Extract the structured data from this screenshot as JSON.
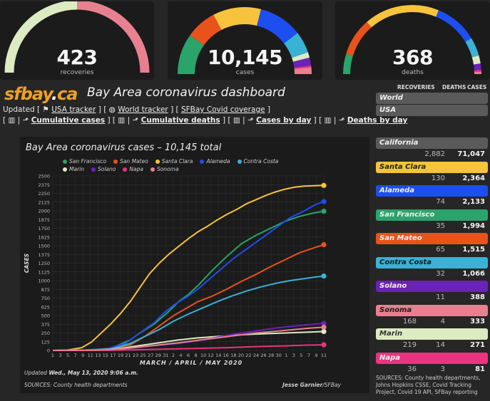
{
  "gauges": [
    {
      "value": "423",
      "label": "recoveries"
    },
    {
      "value": "10,145",
      "label": "cases"
    },
    {
      "value": "368",
      "label": "deaths"
    }
  ],
  "header": {
    "logo_main": "sfbay",
    "logo_suffix": "ca",
    "title": "Bay Area coronavirus dashboard",
    "updated_prefix": "Updated [",
    "links_row1": [
      {
        "icon": "flag-icon",
        "label": "USA tracker"
      },
      {
        "icon": "globe-icon",
        "label": "World tracker"
      },
      {
        "icon": "",
        "label": "SFBay Covid coverage"
      }
    ],
    "links_row2": [
      {
        "label": "Cumulative cases"
      },
      {
        "label": "Cumulative deaths"
      },
      {
        "label": "Cases by day"
      },
      {
        "label": "Deaths by day"
      }
    ]
  },
  "chart_data": {
    "type": "line",
    "title": "Bay Area coronavirus cases – 10,145 total",
    "xlabel": "MARCH / APRIL / MAY 2020",
    "ylabel": "CASES",
    "ylim": [
      0,
      2500
    ],
    "yticks": [
      0,
      125,
      250,
      375,
      500,
      625,
      750,
      875,
      1000,
      1125,
      1250,
      1375,
      1500,
      1625,
      1750,
      1875,
      2000,
      2125,
      2250,
      2375,
      2500
    ],
    "x_tick_labels": [
      "1",
      "3",
      "5",
      "7",
      "9",
      "11",
      "13",
      "15",
      "17",
      "19",
      "21",
      "23",
      "25",
      "27",
      "29",
      "31",
      "2",
      "4",
      "6",
      "8",
      "10",
      "12",
      "14",
      "16",
      "18",
      "20",
      "22",
      "24",
      "26",
      "28",
      "30",
      "1",
      "3",
      "5",
      "7",
      "9",
      "11"
    ],
    "grid": true,
    "legend_position": "top",
    "series": [
      {
        "name": "San Francisco",
        "color": "#2aa46a",
        "points": [
          [
            0,
            0
          ],
          [
            6,
            2
          ],
          [
            12,
            30
          ],
          [
            16,
            150
          ],
          [
            18,
            250
          ],
          [
            21,
            380
          ],
          [
            24,
            560
          ],
          [
            26,
            700
          ],
          [
            28,
            800
          ],
          [
            30,
            930
          ],
          [
            33,
            1150
          ],
          [
            36,
            1350
          ],
          [
            39,
            1530
          ],
          [
            42,
            1650
          ],
          [
            45,
            1750
          ],
          [
            48,
            1850
          ],
          [
            51,
            1920
          ],
          [
            54,
            1970
          ],
          [
            56,
            1994
          ]
        ]
      },
      {
        "name": "San Mateo",
        "color": "#e8531c",
        "points": [
          [
            0,
            0
          ],
          [
            7,
            2
          ],
          [
            12,
            20
          ],
          [
            16,
            80
          ],
          [
            19,
            200
          ],
          [
            22,
            350
          ],
          [
            25,
            500
          ],
          [
            28,
            620
          ],
          [
            30,
            700
          ],
          [
            33,
            780
          ],
          [
            36,
            880
          ],
          [
            39,
            990
          ],
          [
            42,
            1090
          ],
          [
            45,
            1200
          ],
          [
            48,
            1300
          ],
          [
            51,
            1400
          ],
          [
            54,
            1470
          ],
          [
            56,
            1515
          ]
        ]
      },
      {
        "name": "Santa Clara",
        "color": "#f7c33c",
        "points": [
          [
            0,
            0
          ],
          [
            3,
            5
          ],
          [
            6,
            40
          ],
          [
            8,
            120
          ],
          [
            10,
            250
          ],
          [
            12,
            380
          ],
          [
            14,
            530
          ],
          [
            16,
            700
          ],
          [
            18,
            900
          ],
          [
            20,
            1100
          ],
          [
            22,
            1250
          ],
          [
            24,
            1380
          ],
          [
            26,
            1490
          ],
          [
            28,
            1600
          ],
          [
            30,
            1700
          ],
          [
            32,
            1780
          ],
          [
            34,
            1870
          ],
          [
            36,
            1950
          ],
          [
            38,
            2020
          ],
          [
            40,
            2100
          ],
          [
            42,
            2160
          ],
          [
            44,
            2220
          ],
          [
            46,
            2270
          ],
          [
            48,
            2310
          ],
          [
            50,
            2340
          ],
          [
            52,
            2355
          ],
          [
            56,
            2364
          ]
        ]
      },
      {
        "name": "Alameda",
        "color": "#1d4ef0",
        "points": [
          [
            0,
            0
          ],
          [
            6,
            2
          ],
          [
            11,
            20
          ],
          [
            15,
            100
          ],
          [
            18,
            250
          ],
          [
            21,
            400
          ],
          [
            23,
            540
          ],
          [
            25,
            650
          ],
          [
            28,
            780
          ],
          [
            30,
            880
          ],
          [
            32,
            1000
          ],
          [
            34,
            1120
          ],
          [
            37,
            1300
          ],
          [
            40,
            1450
          ],
          [
            43,
            1600
          ],
          [
            46,
            1750
          ],
          [
            49,
            1900
          ],
          [
            52,
            2000
          ],
          [
            54,
            2080
          ],
          [
            56,
            2133
          ]
        ]
      },
      {
        "name": "Contra Costa",
        "color": "#39b2d6",
        "points": [
          [
            0,
            0
          ],
          [
            7,
            2
          ],
          [
            12,
            20
          ],
          [
            16,
            100
          ],
          [
            19,
            200
          ],
          [
            22,
            300
          ],
          [
            25,
            420
          ],
          [
            28,
            520
          ],
          [
            31,
            610
          ],
          [
            34,
            700
          ],
          [
            37,
            780
          ],
          [
            40,
            850
          ],
          [
            43,
            910
          ],
          [
            46,
            960
          ],
          [
            49,
            1000
          ],
          [
            52,
            1030
          ],
          [
            54,
            1050
          ],
          [
            56,
            1066
          ]
        ]
      },
      {
        "name": "Marin",
        "color": "#dcebc2",
        "points": [
          [
            0,
            0
          ],
          [
            9,
            5
          ],
          [
            14,
            30
          ],
          [
            18,
            70
          ],
          [
            22,
            110
          ],
          [
            26,
            150
          ],
          [
            30,
            180
          ],
          [
            34,
            200
          ],
          [
            38,
            220
          ],
          [
            42,
            235
          ],
          [
            46,
            245
          ],
          [
            50,
            255
          ],
          [
            54,
            265
          ],
          [
            56,
            271
          ]
        ]
      },
      {
        "name": "Solano",
        "color": "#6a22b8",
        "points": [
          [
            0,
            0
          ],
          [
            9,
            5
          ],
          [
            14,
            20
          ],
          [
            18,
            45
          ],
          [
            22,
            75
          ],
          [
            26,
            100
          ],
          [
            30,
            140
          ],
          [
            34,
            190
          ],
          [
            38,
            240
          ],
          [
            42,
            280
          ],
          [
            46,
            320
          ],
          [
            50,
            350
          ],
          [
            53,
            370
          ],
          [
            56,
            388
          ]
        ]
      },
      {
        "name": "Napa",
        "color": "#e8357f",
        "points": [
          [
            0,
            0
          ],
          [
            12,
            2
          ],
          [
            18,
            10
          ],
          [
            24,
            20
          ],
          [
            30,
            30
          ],
          [
            36,
            40
          ],
          [
            42,
            55
          ],
          [
            48,
            65
          ],
          [
            52,
            75
          ],
          [
            56,
            81
          ]
        ]
      },
      {
        "name": "Sonoma",
        "color": "#e8808f",
        "points": [
          [
            0,
            0
          ],
          [
            10,
            5
          ],
          [
            14,
            20
          ],
          [
            18,
            50
          ],
          [
            22,
            80
          ],
          [
            26,
            110
          ],
          [
            30,
            145
          ],
          [
            34,
            180
          ],
          [
            38,
            215
          ],
          [
            42,
            250
          ],
          [
            46,
            275
          ],
          [
            50,
            300
          ],
          [
            53,
            318
          ],
          [
            56,
            333
          ]
        ]
      }
    ]
  },
  "chart_footer": {
    "updated_prefix": "Updated",
    "updated_time": "Wed., May 13, 2020 9:06 a.m.",
    "sources": "SOURCES: County health departments",
    "credit_name": "Jesse Garnier",
    "credit_org": "/SFBay"
  },
  "side": {
    "col_recoveries": "RECOVERIES",
    "col_deaths": "DEATHS",
    "col_cases": "CASES",
    "top_rows": [
      {
        "label": "World",
        "color": "#5a5a5a"
      },
      {
        "label": "USA",
        "color": "#5a5a5a"
      }
    ],
    "regions": [
      {
        "label": "California",
        "color": "#5a5a5a",
        "text_color": "#f2f2f2",
        "recoveries": "",
        "deaths": "2,882",
        "cases": "71,047"
      },
      {
        "label": "Santa Clara",
        "color": "#f7c33c",
        "text_color": "#222",
        "recoveries": "",
        "deaths": "130",
        "cases": "2,364"
      },
      {
        "label": "Alameda",
        "color": "#1d4ef0",
        "text_color": "#f2f2f2",
        "recoveries": "",
        "deaths": "74",
        "cases": "2,133"
      },
      {
        "label": "San Francisco",
        "color": "#2aa46a",
        "text_color": "#f2f2f2",
        "recoveries": "",
        "deaths": "35",
        "cases": "1,994"
      },
      {
        "label": "San Mateo",
        "color": "#e8531c",
        "text_color": "#f2f2f2",
        "recoveries": "",
        "deaths": "65",
        "cases": "1,515"
      },
      {
        "label": "Contra Costa",
        "color": "#39b2d6",
        "text_color": "#1a1a1a",
        "recoveries": "",
        "deaths": "32",
        "cases": "1,066"
      },
      {
        "label": "Solano",
        "color": "#6a22b8",
        "text_color": "#f2f2f2",
        "recoveries": "",
        "deaths": "11",
        "cases": "388"
      },
      {
        "label": "Sonoma",
        "color": "#e8808f",
        "text_color": "#1a1a1a",
        "recoveries": "168",
        "deaths": "4",
        "cases": "333"
      },
      {
        "label": "Marin",
        "color": "#dcebc2",
        "text_color": "#333",
        "recoveries": "219",
        "deaths": "14",
        "cases": "271"
      },
      {
        "label": "Napa",
        "color": "#e8357f",
        "text_color": "#f2f2f2",
        "recoveries": "36",
        "deaths": "3",
        "cases": "81"
      }
    ],
    "sources": "SOURCES: County health departments, Johns Hopkins CSSE, Covid Tracking Project, Covid 19 API, SFBay reporting"
  }
}
